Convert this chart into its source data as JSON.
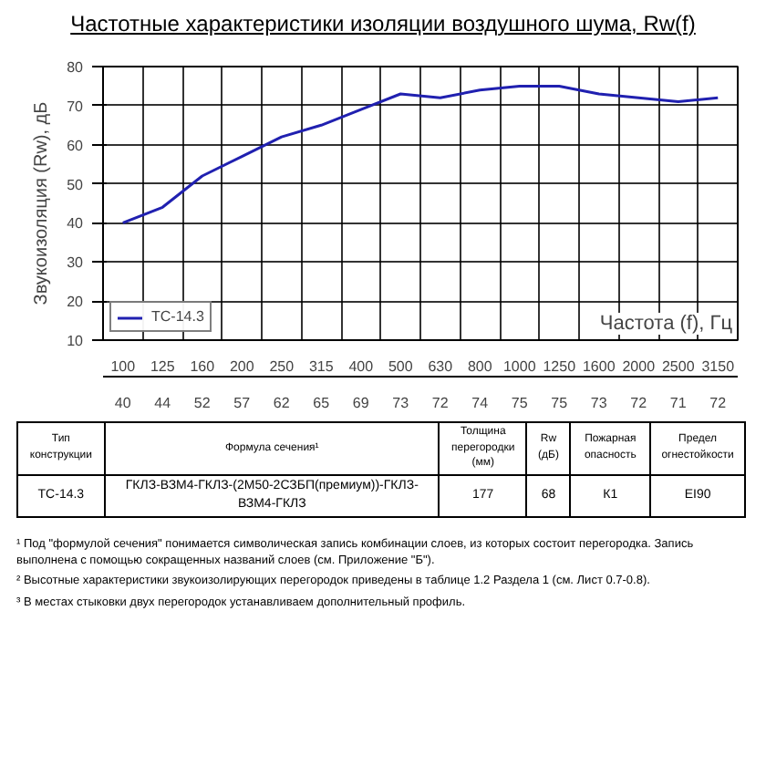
{
  "chart_data": {
    "type": "line",
    "title": "Частотные характеристики изоляции воздушного шума, Rw(f)",
    "xlabel": "Частота (f), Гц",
    "ylabel": "Звукоизоляция (Rw), дБ",
    "categories": [
      "100",
      "125",
      "160",
      "200",
      "250",
      "315",
      "400",
      "500",
      "630",
      "800",
      "1000",
      "1250",
      "1600",
      "2000",
      "2500",
      "3150"
    ],
    "series": [
      {
        "name": "ТС-14.3",
        "color": "#2020b0",
        "values": [
          40,
          44,
          52,
          57,
          62,
          65,
          69,
          73,
          72,
          74,
          75,
          75,
          73,
          72,
          71,
          72
        ]
      }
    ],
    "ylim": [
      10,
      80
    ],
    "yticks": [
      10,
      20,
      30,
      40,
      50,
      60,
      70,
      80
    ],
    "grid": true,
    "legend": "bottom left",
    "data_labels": true,
    "marker": "none",
    "line_style": "solid",
    "annotations": [
      "Тип конструкции",
      "Формула сечения¹",
      "Толщина перегородки (мм)",
      "Rw (дБ)",
      "Пожарная опасность",
      "Предел огнестойкости",
      "ТС-14.3",
      "ГКЛЗ-ВЗМ4-ГКЛЗ-(2М50-2СЗБП(премиум))-ГКЛЗ-ВЗМ4-ГКЛЗ",
      "177",
      "68",
      "К1",
      "EI90",
      "¹ Под \"формулой сечения\" понимается символическая запись комбинации слоев, из которых состоит перегородка. Запись выполнена с помощью сокращенных названий слоев (см. Приложение \"Б\").",
      "² Высотные характеристики звукоизолирующих перегородок приведены в таблице 1.2 Раздела 1 (см. Лист 0.7-0.8).",
      "³ В местах стыковки двух перегородок устанавливаем дополнительный профиль."
    ]
  }
}
